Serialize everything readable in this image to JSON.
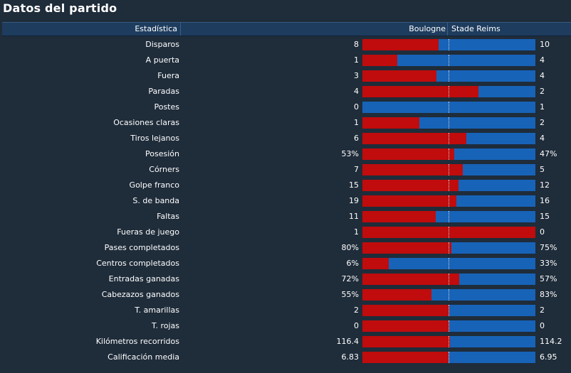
{
  "title": "Datos del partido",
  "header": {
    "stat_col": "Estadística",
    "home_team": "Boulogne",
    "away_team": "Stade Reims"
  },
  "colors": {
    "home": "#c00c0c",
    "away": "#1763b8",
    "background": "#1f2c3a",
    "header": "#1e3c5e"
  },
  "stats": [
    {
      "label": "Disparos",
      "home": "8",
      "away": "10",
      "home_share": 0.44
    },
    {
      "label": "A puerta",
      "home": "1",
      "away": "4",
      "home_share": 0.2
    },
    {
      "label": "Fuera",
      "home": "3",
      "away": "4",
      "home_share": 0.43
    },
    {
      "label": "Paradas",
      "home": "4",
      "away": "2",
      "home_share": 0.67
    },
    {
      "label": "Postes",
      "home": "0",
      "away": "1",
      "home_share": 0.0
    },
    {
      "label": "Ocasiones claras",
      "home": "1",
      "away": "2",
      "home_share": 0.33
    },
    {
      "label": "Tiros lejanos",
      "home": "6",
      "away": "4",
      "home_share": 0.6
    },
    {
      "label": "Posesión",
      "home": "53%",
      "away": "47%",
      "home_share": 0.53
    },
    {
      "label": "Córners",
      "home": "7",
      "away": "5",
      "home_share": 0.58
    },
    {
      "label": "Golpe franco",
      "home": "15",
      "away": "12",
      "home_share": 0.555
    },
    {
      "label": "S. de banda",
      "home": "19",
      "away": "16",
      "home_share": 0.543
    },
    {
      "label": "Faltas",
      "home": "11",
      "away": "15",
      "home_share": 0.423
    },
    {
      "label": "Fueras de juego",
      "home": "1",
      "away": "0",
      "home_share": 1.0
    },
    {
      "label": "Pases completados",
      "home": "80%",
      "away": "75%",
      "home_share": 0.516
    },
    {
      "label": "Centros completados",
      "home": "6%",
      "away": "33%",
      "home_share": 0.154
    },
    {
      "label": "Entradas ganadas",
      "home": "72%",
      "away": "57%",
      "home_share": 0.558
    },
    {
      "label": "Cabezazos ganados",
      "home": "55%",
      "away": "83%",
      "home_share": 0.399
    },
    {
      "label": "T. amarillas",
      "home": "2",
      "away": "2",
      "home_share": 0.5
    },
    {
      "label": "T. rojas",
      "home": "0",
      "away": "0",
      "home_share": 0.5
    },
    {
      "label": "Kilómetros recorridos",
      "home": "116.4",
      "away": "114.2",
      "home_share": 0.505
    },
    {
      "label": "Calificación media",
      "home": "6.83",
      "away": "6.95",
      "home_share": 0.496
    }
  ]
}
